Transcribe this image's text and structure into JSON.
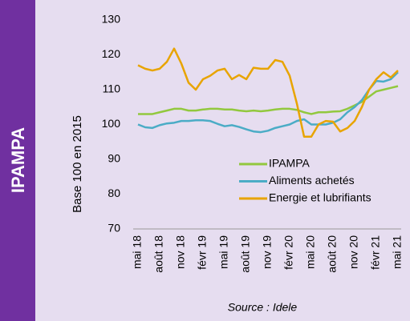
{
  "sidebar": {
    "title": "IPAMPA"
  },
  "chart_data": {
    "type": "line",
    "ylabel": "Base 100 en 2015",
    "source": "Source : Idele",
    "categories": [
      "mai 18",
      null,
      null,
      "août 18",
      null,
      null,
      "nov 18",
      null,
      null,
      "févr 19",
      null,
      null,
      "mai 19",
      null,
      null,
      "août 19",
      null,
      null,
      "nov 19",
      null,
      null,
      "févr 20",
      null,
      null,
      "mai 20",
      null,
      null,
      "août 20",
      null,
      null,
      "nov 20",
      null,
      null,
      "févr 21",
      null,
      null,
      "mai 21"
    ],
    "series": [
      {
        "name": "IPAMPA",
        "color": "#92c83e",
        "values": [
          103,
          103,
          103,
          103.5,
          104,
          104.5,
          104.5,
          104,
          104,
          104.3,
          104.5,
          104.5,
          104.3,
          104.3,
          104,
          103.8,
          104,
          103.8,
          104,
          104.3,
          104.5,
          104.5,
          104.2,
          103.5,
          103,
          103.5,
          103.5,
          103.7,
          103.8,
          104.5,
          105.5,
          106.5,
          108,
          109.5,
          110,
          110.5,
          111
        ]
      },
      {
        "name": "Aliments achetés",
        "color": "#4bacc6",
        "values": [
          100,
          99.2,
          99,
          99.8,
          100.3,
          100.5,
          101,
          101,
          101.2,
          101.2,
          101,
          100.2,
          99.5,
          99.8,
          99.3,
          98.6,
          98,
          97.8,
          98.2,
          99,
          99.5,
          100,
          101,
          101.5,
          100,
          100,
          100,
          100.5,
          101.5,
          103.5,
          105,
          107,
          110,
          112.5,
          112.3,
          113,
          115
        ]
      },
      {
        "name": "Energie et lubrifiants",
        "color": "#e8a400",
        "values": [
          117,
          116,
          115.5,
          116,
          118,
          121.8,
          117.5,
          112,
          110,
          113,
          114,
          115.5,
          116,
          113,
          114.2,
          113,
          116.3,
          116,
          116,
          118.5,
          118,
          114,
          106,
          96.5,
          96.5,
          100,
          101,
          100.8,
          98,
          99,
          101,
          105,
          110,
          113,
          115,
          113.5,
          115.5
        ]
      }
    ],
    "ylim": [
      70,
      130
    ],
    "yticks": [
      70,
      80,
      90,
      100,
      110,
      120,
      130
    ],
    "grid": false,
    "legend": "lower center"
  }
}
